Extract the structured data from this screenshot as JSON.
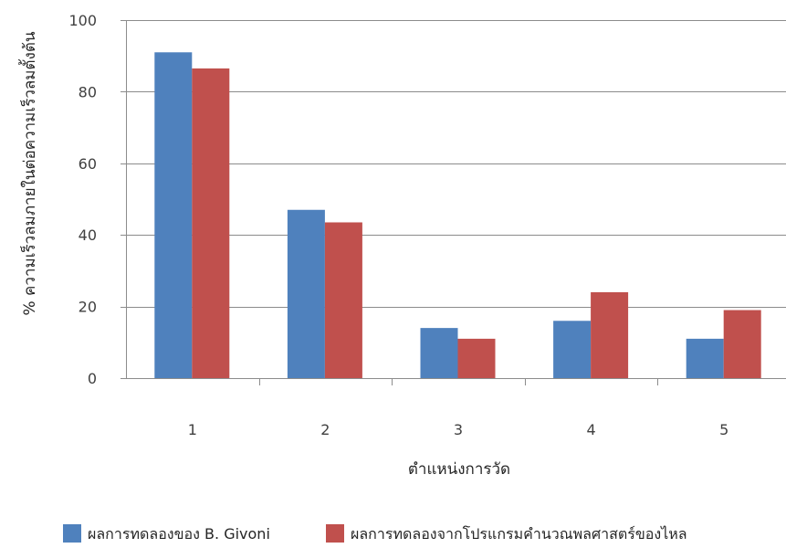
{
  "chart_data": {
    "type": "bar",
    "categories": [
      "1",
      "2",
      "3",
      "4",
      "5"
    ],
    "series": [
      {
        "name": "ผลการทดลองของ B. Givoni",
        "values": [
          91,
          47,
          14,
          16,
          11
        ],
        "color": "#4F81BD"
      },
      {
        "name": "ผลการทดลองจากโปรแกรมคำนวณพลศาสตร์ของไหล",
        "values": [
          86.5,
          43.5,
          11,
          24,
          19
        ],
        "color": "#C0504D"
      }
    ],
    "title": "",
    "xlabel": "ตำแหน่งการวัด",
    "ylabel": "% ความเร็วลมภายในต่อความเร็วลมตั้งต้น",
    "ylim": [
      0,
      100
    ],
    "yticks": [
      0,
      20,
      40,
      60,
      80,
      100
    ],
    "grid": true,
    "legend": "bottom"
  }
}
